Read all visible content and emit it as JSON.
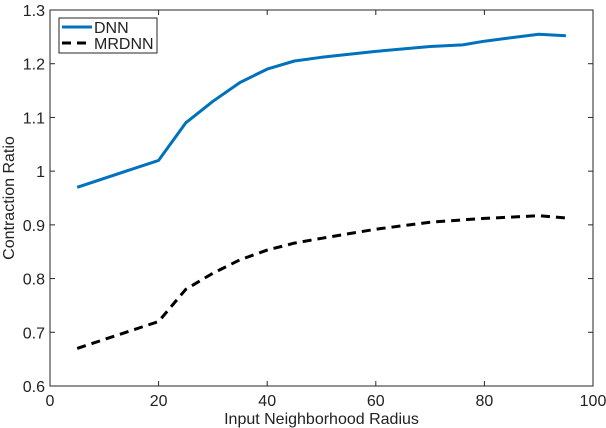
{
  "chart_data": {
    "type": "line",
    "title": "",
    "xlabel": "Input Neighborhood Radius",
    "ylabel": "Contraction Ratio",
    "xlim": [
      0,
      100
    ],
    "ylim": [
      0.6,
      1.3
    ],
    "xticks": [
      0,
      20,
      40,
      60,
      80,
      100
    ],
    "yticks": [
      0.6,
      0.7,
      0.8,
      0.9,
      1.0,
      1.1,
      1.2,
      1.3
    ],
    "xtick_labels": [
      "0",
      "20",
      "40",
      "60",
      "80",
      "100"
    ],
    "ytick_labels": [
      "0.6",
      "0.7",
      "0.8",
      "0.9",
      "1",
      "1.1",
      "1.2",
      "1.3"
    ],
    "grid": false,
    "legend_position": "upper left",
    "series": [
      {
        "name": "DNN",
        "color": "#0072BD",
        "style": "solid",
        "x": [
          5,
          20,
          25,
          30,
          35,
          40,
          45,
          50,
          60,
          70,
          76,
          80,
          90,
          95
        ],
        "values": [
          0.97,
          1.02,
          1.09,
          1.13,
          1.165,
          1.19,
          1.205,
          1.212,
          1.223,
          1.232,
          1.235,
          1.242,
          1.255,
          1.252
        ]
      },
      {
        "name": "MRDNN",
        "color": "#000000",
        "style": "dashed",
        "x": [
          5,
          20,
          25,
          30,
          35,
          40,
          45,
          50,
          60,
          70,
          80,
          90,
          95
        ],
        "values": [
          0.67,
          0.72,
          0.78,
          0.81,
          0.835,
          0.853,
          0.866,
          0.875,
          0.892,
          0.905,
          0.912,
          0.917,
          0.913
        ]
      }
    ]
  }
}
